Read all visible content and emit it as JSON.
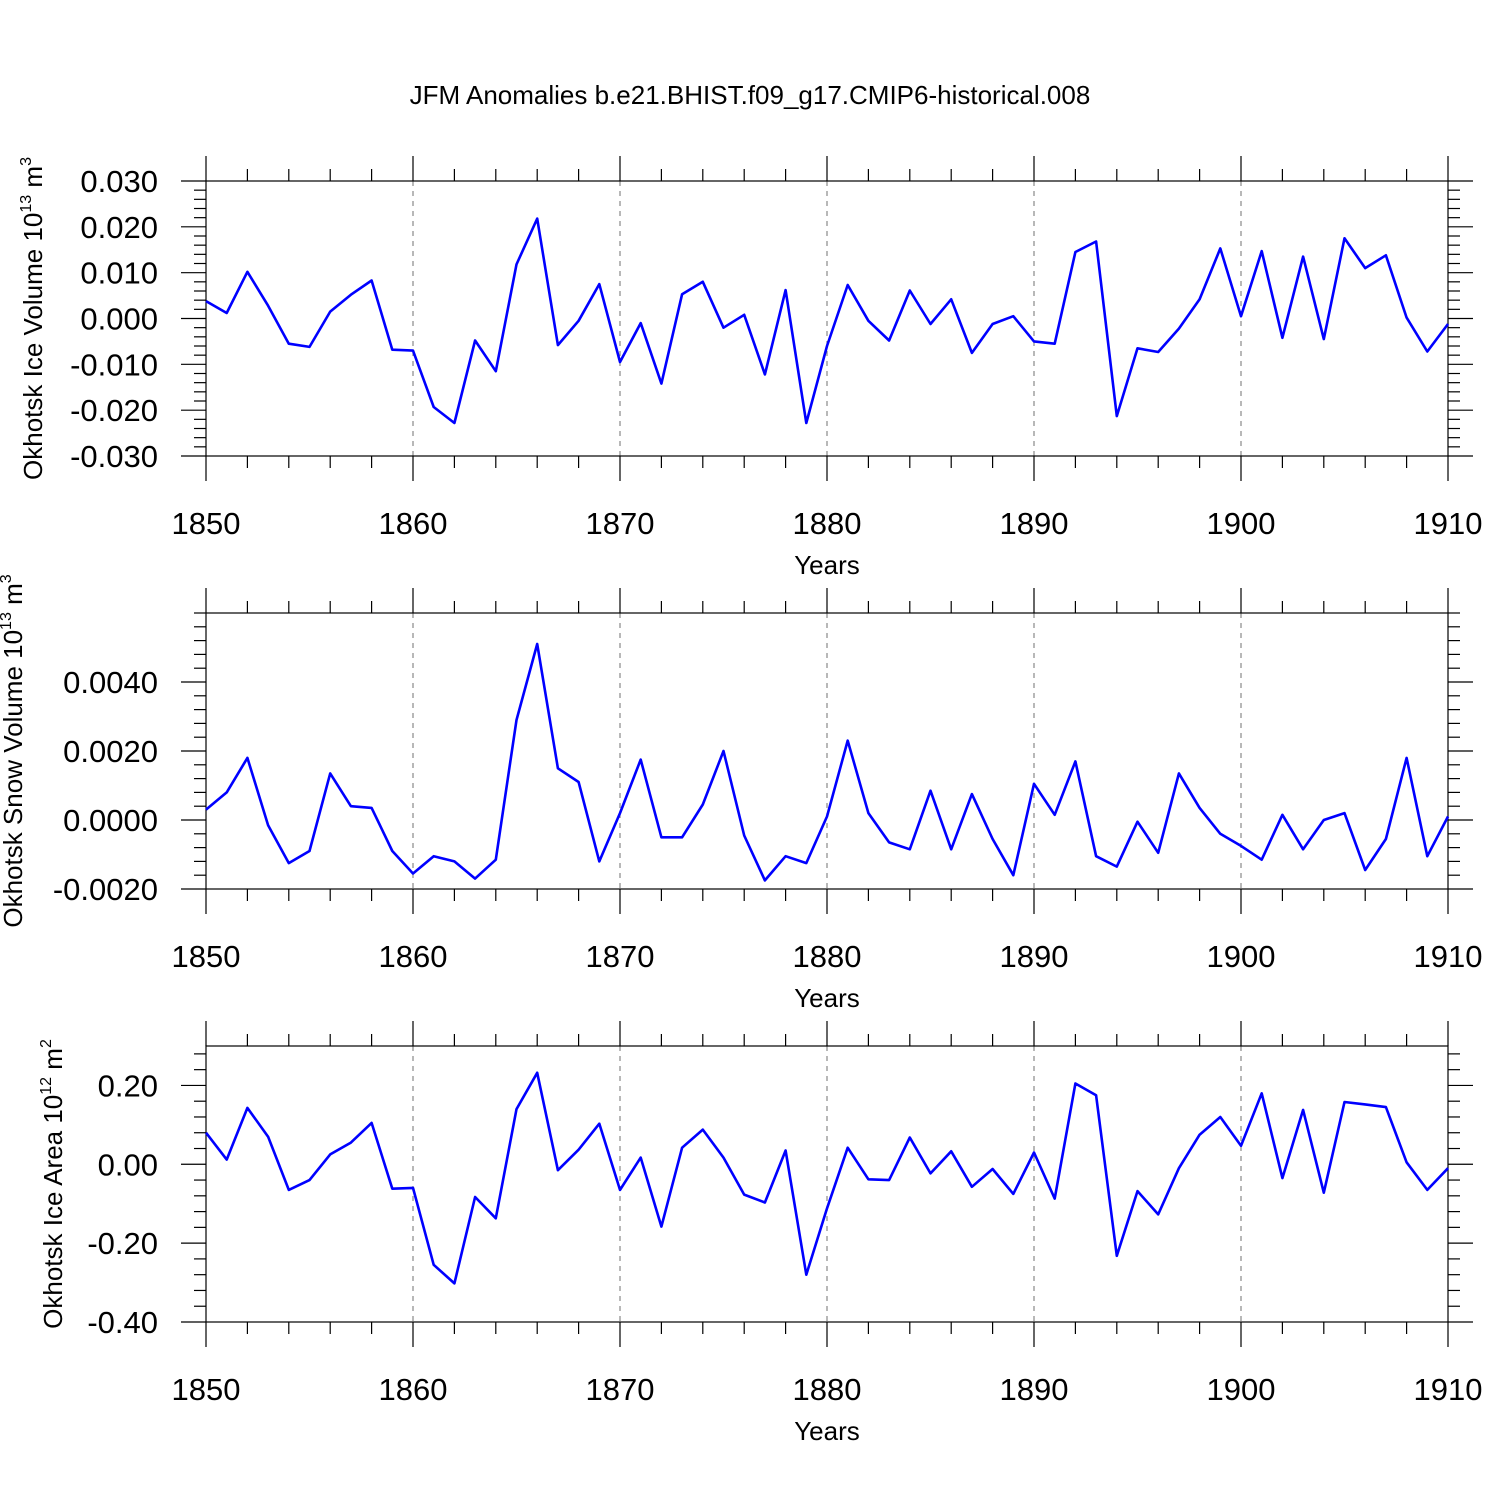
{
  "title": "JFM Anomalies b.e21.BHIST.f09_g17.CMIP6-historical.008",
  "colors": {
    "line": "#0000ff",
    "axis": "#000000",
    "grid": "#888888"
  },
  "chart_data": [
    {
      "type": "line",
      "ylabel": "Okhotsk Ice Volume",
      "yunit_base": "10",
      "yunit_exp": "13",
      "yunit_unit": "m",
      "yunit_unit_exp": "3",
      "xlabel": "Years",
      "xlim": [
        1850,
        1910
      ],
      "ylim": [
        -0.03,
        0.03
      ],
      "xticks": [
        1850,
        1860,
        1870,
        1880,
        1890,
        1900,
        1910
      ],
      "yticks": [
        "-0.030",
        "-0.020",
        "-0.010",
        "0.000",
        "0.010",
        "0.020",
        "0.030"
      ],
      "grid": "dashed vertical at major x ticks",
      "series": [
        {
          "x": [
            1850,
            1851,
            1852,
            1853,
            1854,
            1855,
            1856,
            1857,
            1858,
            1859,
            1860,
            1861,
            1862,
            1863,
            1864,
            1865,
            1866,
            1867,
            1868,
            1869,
            1870,
            1871,
            1872,
            1873,
            1874,
            1875,
            1876,
            1877,
            1878,
            1879,
            1880,
            1881,
            1882,
            1883,
            1884,
            1885,
            1886,
            1887,
            1888,
            1889,
            1890,
            1891,
            1892,
            1893,
            1894,
            1895,
            1896,
            1897,
            1898,
            1899,
            1900,
            1901,
            1902,
            1903,
            1904,
            1905,
            1906,
            1907,
            1908,
            1909,
            1910
          ],
          "y": [
            0.0038,
            0.0012,
            0.0102,
            0.0028,
            -0.0055,
            -0.0062,
            0.0015,
            0.0052,
            0.0083,
            -0.0068,
            -0.007,
            -0.0193,
            -0.0228,
            -0.0048,
            -0.0115,
            0.0118,
            0.0218,
            -0.0058,
            -0.0005,
            0.0075,
            -0.0095,
            -0.001,
            -0.0142,
            0.0053,
            0.008,
            -0.002,
            0.0008,
            -0.0122,
            0.0062,
            -0.0228,
            -0.006,
            0.0073,
            -0.0005,
            -0.0048,
            0.0061,
            -0.0012,
            0.0042,
            -0.0075,
            -0.0012,
            0.0005,
            -0.005,
            -0.0055,
            0.0145,
            0.0168,
            -0.0213,
            -0.0065,
            -0.0073,
            -0.0022,
            0.0042,
            0.0153,
            0.0005,
            0.0147,
            -0.0042,
            0.0135,
            -0.0045,
            0.0175,
            0.011,
            0.0138,
            0.0002,
            -0.0072,
            -0.0012
          ]
        }
      ]
    },
    {
      "type": "line",
      "ylabel": "Okhotsk Snow Volume",
      "yunit_base": "10",
      "yunit_exp": "13",
      "yunit_unit": "m",
      "yunit_unit_exp": "3",
      "xlabel": "Years",
      "xlim": [
        1850,
        1910
      ],
      "ylim": [
        -0.002,
        0.006
      ],
      "xticks": [
        1850,
        1860,
        1870,
        1880,
        1890,
        1900,
        1910
      ],
      "yticks": [
        "-0.0020",
        "0.0000",
        "0.0020",
        "0.0040"
      ],
      "grid": "dashed vertical at major x ticks",
      "series": [
        {
          "x": [
            1850,
            1851,
            1852,
            1853,
            1854,
            1855,
            1856,
            1857,
            1858,
            1859,
            1860,
            1861,
            1862,
            1863,
            1864,
            1865,
            1866,
            1867,
            1868,
            1869,
            1870,
            1871,
            1872,
            1873,
            1874,
            1875,
            1876,
            1877,
            1878,
            1879,
            1880,
            1881,
            1882,
            1883,
            1884,
            1885,
            1886,
            1887,
            1888,
            1889,
            1890,
            1891,
            1892,
            1893,
            1894,
            1895,
            1896,
            1897,
            1898,
            1899,
            1900,
            1901,
            1902,
            1903,
            1904,
            1905,
            1906,
            1907,
            1908,
            1909,
            1910
          ],
          "y": [
            0.0003,
            0.0008,
            0.0018,
            -0.00015,
            -0.00125,
            -0.0009,
            0.00135,
            0.0004,
            0.00035,
            -0.0009,
            -0.00155,
            -0.00105,
            -0.0012,
            -0.0017,
            -0.00115,
            0.0029,
            0.0051,
            0.0015,
            0.0011,
            -0.0012,
            0.0002,
            0.00175,
            -0.0005,
            -0.0005,
            0.00045,
            0.002,
            -0.00045,
            -0.00175,
            -0.00105,
            -0.00125,
            0.0001,
            0.0023,
            0.0002,
            -0.00065,
            -0.00085,
            0.00085,
            -0.00085,
            0.00075,
            -0.00055,
            -0.0016,
            0.00105,
            0.00015,
            0.0017,
            -0.00105,
            -0.00135,
            -5e-05,
            -0.00095,
            0.00135,
            0.00035,
            -0.0004,
            -0.00075,
            -0.00115,
            0.00015,
            -0.00085,
            0.0,
            0.0002,
            -0.00145,
            -0.00055,
            0.0018,
            -0.00105,
            0.0001
          ]
        }
      ]
    },
    {
      "type": "line",
      "ylabel": "Okhotsk Ice Area",
      "yunit_base": "10",
      "yunit_exp": "12",
      "yunit_unit": "m",
      "yunit_unit_exp": "2",
      "xlabel": "Years",
      "xlim": [
        1850,
        1910
      ],
      "ylim": [
        -0.4,
        0.3
      ],
      "xticks": [
        1850,
        1860,
        1870,
        1880,
        1890,
        1900,
        1910
      ],
      "yticks": [
        "-0.40",
        "-0.20",
        "0.00",
        "0.20"
      ],
      "grid": "dashed vertical at major x ticks",
      "series": [
        {
          "x": [
            1850,
            1851,
            1852,
            1853,
            1854,
            1855,
            1856,
            1857,
            1858,
            1859,
            1860,
            1861,
            1862,
            1863,
            1864,
            1865,
            1866,
            1867,
            1868,
            1869,
            1870,
            1871,
            1872,
            1873,
            1874,
            1875,
            1876,
            1877,
            1878,
            1879,
            1880,
            1881,
            1882,
            1883,
            1884,
            1885,
            1886,
            1887,
            1888,
            1889,
            1890,
            1891,
            1892,
            1893,
            1894,
            1895,
            1896,
            1897,
            1898,
            1899,
            1900,
            1901,
            1902,
            1903,
            1904,
            1905,
            1906,
            1907,
            1908,
            1909,
            1910
          ],
          "y": [
            0.08,
            0.012,
            0.143,
            0.07,
            -0.065,
            -0.04,
            0.025,
            0.055,
            0.105,
            -0.062,
            -0.06,
            -0.255,
            -0.302,
            -0.083,
            -0.137,
            0.14,
            0.232,
            -0.015,
            0.037,
            0.103,
            -0.065,
            0.017,
            -0.158,
            0.042,
            0.088,
            0.017,
            -0.077,
            -0.097,
            0.035,
            -0.28,
            -0.112,
            0.042,
            -0.038,
            -0.04,
            0.068,
            -0.023,
            0.033,
            -0.057,
            -0.012,
            -0.075,
            0.03,
            -0.087,
            0.205,
            0.175,
            -0.232,
            -0.068,
            -0.127,
            -0.01,
            0.075,
            0.12,
            0.047,
            0.18,
            -0.035,
            0.138,
            -0.072,
            0.158,
            0.152,
            0.145,
            0.005,
            -0.065,
            -0.01
          ]
        }
      ]
    }
  ]
}
